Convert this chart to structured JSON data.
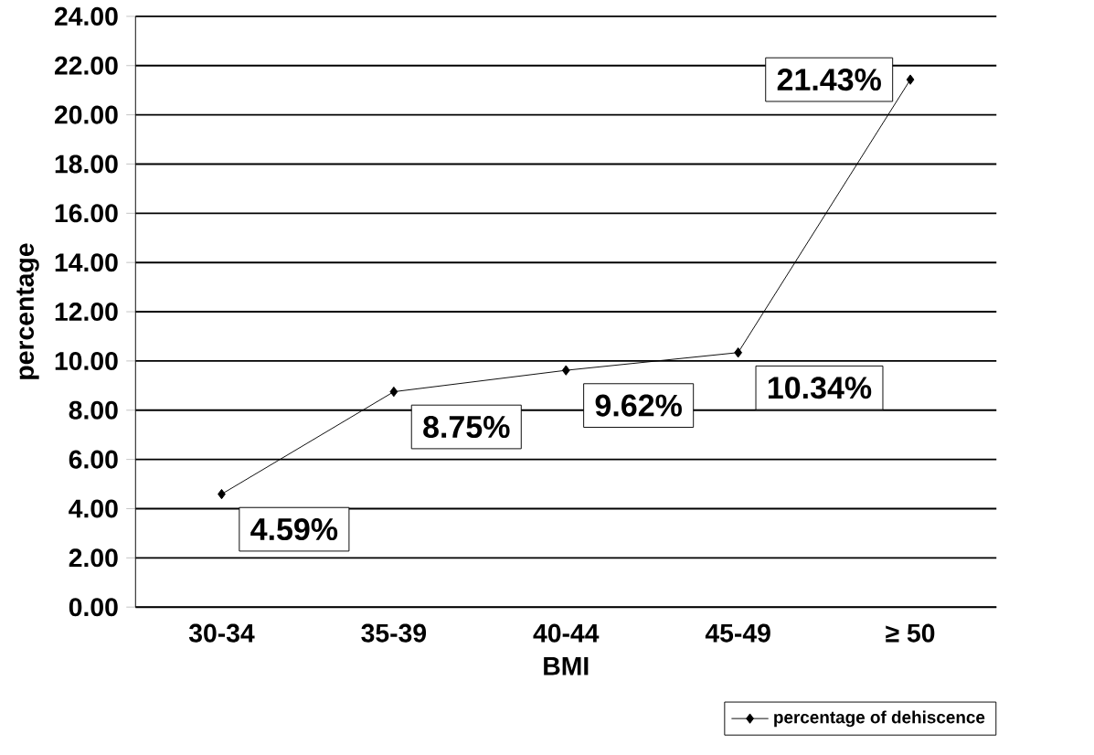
{
  "chart_data": {
    "type": "line",
    "xlabel": "BMI",
    "ylabel": "percentage",
    "categories": [
      "30-34",
      "35-39",
      "40-44",
      "45-49",
      "≥ 50"
    ],
    "series": [
      {
        "name": "percentage of dehiscence",
        "color": "#000000",
        "values": [
          4.59,
          8.75,
          9.62,
          10.34,
          21.43
        ],
        "value_labels": [
          "4.59%",
          "8.75%",
          "9.62%",
          "10.34%",
          "21.43%"
        ]
      }
    ],
    "ylim": [
      0,
      24
    ],
    "yticks": [
      {
        "value": 0,
        "label": "0.00"
      },
      {
        "value": 2,
        "label": "2.00"
      },
      {
        "value": 4,
        "label": "4.00"
      },
      {
        "value": 6,
        "label": "6.00"
      },
      {
        "value": 8,
        "label": "8.00"
      },
      {
        "value": 10,
        "label": "10.00"
      },
      {
        "value": 12,
        "label": "12.00"
      },
      {
        "value": 14,
        "label": "14.00"
      },
      {
        "value": 16,
        "label": "16.00"
      },
      {
        "value": 18,
        "label": "18.00"
      },
      {
        "value": 20,
        "label": "20.00"
      },
      {
        "value": 22,
        "label": "22.00"
      },
      {
        "value": 24,
        "label": "24.00"
      }
    ],
    "grid": "y",
    "legend": "bottom right",
    "marker": "diamond",
    "line_style": "solid"
  }
}
